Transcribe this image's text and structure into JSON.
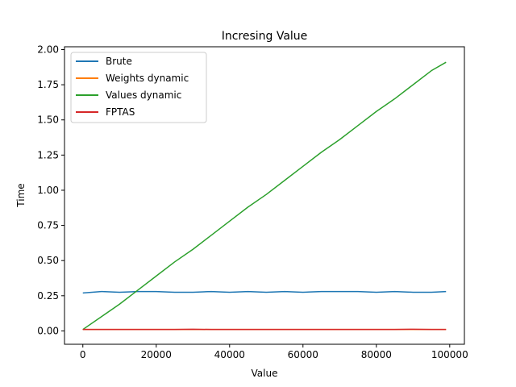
{
  "chart_data": {
    "type": "line",
    "title": "Incresing Value",
    "xlabel": "Value",
    "ylabel": "Time",
    "xlim": [
      -5000,
      104000
    ],
    "ylim": [
      -0.095,
      2.02
    ],
    "xticks": [
      0,
      20000,
      40000,
      60000,
      80000,
      100000
    ],
    "xtick_labels": [
      "0",
      "20000",
      "40000",
      "60000",
      "80000",
      "100000"
    ],
    "yticks": [
      0.0,
      0.25,
      0.5,
      0.75,
      1.0,
      1.25,
      1.5,
      1.75,
      2.0
    ],
    "ytick_labels": [
      "0.00",
      "0.25",
      "0.50",
      "0.75",
      "1.00",
      "1.25",
      "1.50",
      "1.75",
      "2.00"
    ],
    "grid": false,
    "legend_position": "top-left",
    "x": [
      0,
      5000,
      10000,
      15000,
      20000,
      25000,
      30000,
      35000,
      40000,
      45000,
      50000,
      55000,
      60000,
      65000,
      70000,
      75000,
      80000,
      85000,
      90000,
      95000,
      99000
    ],
    "series": [
      {
        "name": "Brute",
        "color": "#1f77b4",
        "values": [
          0.27,
          0.28,
          0.275,
          0.28,
          0.28,
          0.275,
          0.275,
          0.28,
          0.275,
          0.28,
          0.275,
          0.28,
          0.275,
          0.28,
          0.28,
          0.28,
          0.275,
          0.28,
          0.275,
          0.275,
          0.28
        ]
      },
      {
        "name": "Weights dynamic",
        "color": "#ff7f0e",
        "values": [
          0.01,
          0.01,
          0.01,
          0.01,
          0.01,
          0.01,
          0.01,
          0.01,
          0.01,
          0.01,
          0.01,
          0.01,
          0.01,
          0.01,
          0.01,
          0.01,
          0.01,
          0.01,
          0.01,
          0.01,
          0.01
        ]
      },
      {
        "name": "Values dynamic",
        "color": "#2ca02c",
        "values": [
          0.01,
          0.1,
          0.19,
          0.29,
          0.39,
          0.49,
          0.58,
          0.68,
          0.78,
          0.88,
          0.97,
          1.07,
          1.17,
          1.27,
          1.36,
          1.46,
          1.56,
          1.65,
          1.75,
          1.85,
          1.91
        ]
      },
      {
        "name": "FPTAS",
        "color": "#d62728",
        "values": [
          0.01,
          0.01,
          0.01,
          0.01,
          0.01,
          0.01,
          0.012,
          0.01,
          0.01,
          0.01,
          0.01,
          0.01,
          0.01,
          0.01,
          0.01,
          0.01,
          0.01,
          0.01,
          0.012,
          0.01,
          0.01
        ]
      }
    ]
  }
}
